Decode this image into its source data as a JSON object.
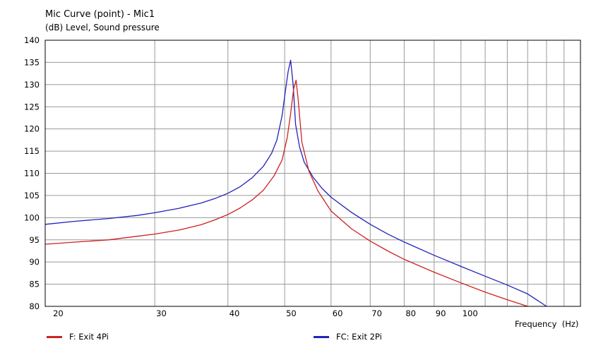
{
  "chart_data": {
    "type": "line",
    "title": "Mic Curve (point) - Mic1",
    "subtitle": "(dB)  Level, Sound pressure",
    "xlabel": "Frequency  (Hz)",
    "ylabel": "",
    "x_scale": "log",
    "xlim": [
      19.5,
      160
    ],
    "ylim": [
      80,
      140
    ],
    "grid": true,
    "legend_position": "bottom",
    "y_ticks": [
      80,
      85,
      90,
      95,
      100,
      105,
      110,
      115,
      120,
      125,
      130,
      135,
      140
    ],
    "x_ticks": [
      20,
      30,
      40,
      50,
      60,
      70,
      80,
      90,
      100
    ],
    "series": [
      {
        "name": "F: Exit 4Pi",
        "color": "#cc2222",
        "x": [
          19.5,
          22,
          25,
          28,
          30,
          33,
          36,
          38,
          40,
          42,
          44,
          46,
          48,
          49.5,
          50.5,
          51.2,
          51.8,
          52.3,
          52.7,
          53.5,
          55,
          57,
          60,
          65,
          70,
          75,
          80,
          90,
          100,
          110,
          120,
          130
        ],
        "values": [
          94,
          94.5,
          95,
          95.8,
          96.3,
          97.2,
          98.4,
          99.5,
          100.7,
          102.2,
          104,
          106.2,
          109.5,
          113,
          118,
          123.5,
          129,
          131,
          127,
          117,
          110.5,
          106,
          101.5,
          97.5,
          94.7,
          92.5,
          90.6,
          87.7,
          85.3,
          83.2,
          81.5,
          80
        ]
      },
      {
        "name": "FC: Exit 2Pi",
        "color": "#2222bb",
        "x": [
          19.5,
          22,
          25,
          28,
          30,
          33,
          36,
          38,
          40,
          42,
          44,
          46,
          47.5,
          48.5,
          49.5,
          50.2,
          50.7,
          51.2,
          51.7,
          52.2,
          53,
          54,
          56,
          58,
          60,
          65,
          70,
          75,
          80,
          90,
          100,
          110,
          120,
          130,
          140
        ],
        "values": [
          98.5,
          99.2,
          99.8,
          100.5,
          101.1,
          102.1,
          103.3,
          104.3,
          105.5,
          107,
          109,
          111.6,
          114.5,
          117.5,
          123,
          129,
          133,
          135.5,
          130,
          121,
          116,
          112.5,
          109,
          106.5,
          104.6,
          101.2,
          98.5,
          96.3,
          94.5,
          91.5,
          89,
          86.8,
          84.8,
          82.8,
          80
        ]
      }
    ]
  }
}
